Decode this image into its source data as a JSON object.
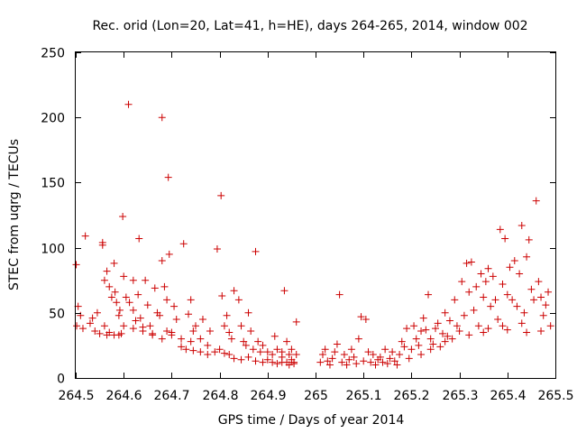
{
  "chart_data": {
    "type": "scatter",
    "title": "Rec. orid (Lon=20, Lat=41, h=HE), days 264-265, 2014, window 002",
    "xlabel": "GPS time / Days of year 2014",
    "ylabel": "STEC from uqrg / TECUs",
    "xlim": [
      264.5,
      265.5
    ],
    "ylim": [
      0,
      250
    ],
    "xticks": [
      264.5,
      264.6,
      264.7,
      264.8,
      264.9,
      265,
      265.1,
      265.2,
      265.3,
      265.4,
      265.5
    ],
    "xtick_labels": [
      "264.5",
      "264.6",
      "264.7",
      "264.8",
      "264.9",
      "265",
      "265.1",
      "265.2",
      "265.3",
      "265.4",
      "265.5"
    ],
    "yticks": [
      0,
      50,
      100,
      150,
      200,
      250
    ],
    "ytick_labels": [
      "0",
      "50",
      "100",
      "150",
      "200",
      "250"
    ],
    "grid": false,
    "legend": "none",
    "marker": "plus",
    "color": "#cc0000",
    "series": [
      {
        "points": [
          [
            264.501,
            87
          ],
          [
            264.52,
            109
          ],
          [
            264.505,
            55
          ],
          [
            264.51,
            48
          ],
          [
            264.502,
            40
          ],
          [
            264.515,
            38
          ],
          [
            264.53,
            42
          ],
          [
            264.535,
            46
          ],
          [
            264.54,
            36
          ],
          [
            264.55,
            34
          ],
          [
            264.545,
            50
          ],
          [
            264.556,
            104
          ],
          [
            264.556,
            102
          ],
          [
            264.56,
            75
          ],
          [
            264.565,
            82
          ],
          [
            264.57,
            70
          ],
          [
            264.575,
            62
          ],
          [
            264.58,
            88
          ],
          [
            264.582,
            66
          ],
          [
            264.585,
            58
          ],
          [
            264.59,
            48
          ],
          [
            264.592,
            52
          ],
          [
            264.56,
            40
          ],
          [
            264.565,
            33
          ],
          [
            264.57,
            35
          ],
          [
            264.58,
            33
          ],
          [
            264.59,
            33
          ],
          [
            264.595,
            34
          ],
          [
            264.598,
            124
          ],
          [
            264.6,
            78
          ],
          [
            264.605,
            62
          ],
          [
            264.61,
            210
          ],
          [
            264.612,
            58
          ],
          [
            264.62,
            75
          ],
          [
            264.62,
            52
          ],
          [
            264.625,
            44
          ],
          [
            264.63,
            64
          ],
          [
            264.632,
            107
          ],
          [
            264.635,
            46
          ],
          [
            264.64,
            36
          ],
          [
            264.645,
            75
          ],
          [
            264.65,
            56
          ],
          [
            264.655,
            40
          ],
          [
            264.66,
            33
          ],
          [
            264.665,
            69
          ],
          [
            264.67,
            50
          ],
          [
            264.675,
            48
          ],
          [
            264.68,
            200
          ],
          [
            264.68,
            90
          ],
          [
            264.685,
            70
          ],
          [
            264.69,
            60
          ],
          [
            264.693,
            154
          ],
          [
            264.695,
            95
          ],
          [
            264.7,
            35
          ],
          [
            264.705,
            55
          ],
          [
            264.71,
            45
          ],
          [
            264.6,
            40
          ],
          [
            264.62,
            38
          ],
          [
            264.64,
            39
          ],
          [
            264.66,
            34
          ],
          [
            264.68,
            30
          ],
          [
            264.7,
            33
          ],
          [
            264.72,
            30
          ],
          [
            264.74,
            28
          ],
          [
            264.69,
            36
          ],
          [
            264.725,
            103
          ],
          [
            264.735,
            49
          ],
          [
            264.74,
            60
          ],
          [
            264.745,
            36
          ],
          [
            264.75,
            40
          ],
          [
            264.76,
            30
          ],
          [
            264.765,
            45
          ],
          [
            264.775,
            25
          ],
          [
            264.78,
            36
          ],
          [
            264.72,
            24
          ],
          [
            264.73,
            22
          ],
          [
            264.745,
            21
          ],
          [
            264.76,
            20
          ],
          [
            264.775,
            18
          ],
          [
            264.79,
            20
          ],
          [
            264.8,
            22
          ],
          [
            264.81,
            19
          ],
          [
            264.82,
            18
          ],
          [
            264.795,
            99
          ],
          [
            264.803,
            140
          ],
          [
            264.805,
            63
          ],
          [
            264.81,
            40
          ],
          [
            264.815,
            48
          ],
          [
            264.82,
            35
          ],
          [
            264.825,
            30
          ],
          [
            264.83,
            67
          ],
          [
            264.84,
            60
          ],
          [
            264.845,
            40
          ],
          [
            264.85,
            28
          ],
          [
            264.855,
            25
          ],
          [
            264.86,
            50
          ],
          [
            264.865,
            36
          ],
          [
            264.87,
            22
          ],
          [
            264.875,
            97
          ],
          [
            264.88,
            28
          ],
          [
            264.885,
            20
          ],
          [
            264.83,
            15
          ],
          [
            264.845,
            14
          ],
          [
            264.86,
            16
          ],
          [
            264.875,
            13
          ],
          [
            264.89,
            12
          ],
          [
            264.9,
            14
          ],
          [
            264.91,
            12
          ],
          [
            264.92,
            11
          ],
          [
            264.93,
            12
          ],
          [
            264.89,
            25
          ],
          [
            264.9,
            20
          ],
          [
            264.91,
            18
          ],
          [
            264.915,
            32
          ],
          [
            264.92,
            22
          ],
          [
            264.93,
            20
          ],
          [
            264.935,
            67
          ],
          [
            264.94,
            28
          ],
          [
            264.945,
            18
          ],
          [
            264.95,
            14
          ],
          [
            264.955,
            12
          ],
          [
            264.96,
            43
          ],
          [
            264.96,
            18
          ],
          [
            264.945,
            10
          ],
          [
            264.955,
            11
          ],
          [
            264.95,
            22
          ],
          [
            264.94,
            12
          ],
          [
            264.93,
            16
          ],
          [
            265.01,
            12
          ],
          [
            265.015,
            18
          ],
          [
            265.02,
            22
          ],
          [
            265.025,
            13
          ],
          [
            265.03,
            10
          ],
          [
            265.035,
            15
          ],
          [
            265.04,
            20
          ],
          [
            265.045,
            26
          ],
          [
            265.05,
            64
          ],
          [
            265.055,
            12
          ],
          [
            265.06,
            18
          ],
          [
            265.065,
            10
          ],
          [
            265.07,
            14
          ],
          [
            265.075,
            22
          ],
          [
            265.08,
            16
          ],
          [
            265.085,
            11
          ],
          [
            265.09,
            30
          ],
          [
            265.095,
            47
          ],
          [
            265.1,
            13
          ],
          [
            265.105,
            45
          ],
          [
            265.11,
            20
          ],
          [
            265.115,
            12
          ],
          [
            265.12,
            18
          ],
          [
            265.125,
            10
          ],
          [
            265.13,
            14
          ],
          [
            265.135,
            16
          ],
          [
            265.14,
            12
          ],
          [
            265.145,
            22
          ],
          [
            265.15,
            11
          ],
          [
            265.155,
            15
          ],
          [
            265.16,
            20
          ],
          [
            265.165,
            13
          ],
          [
            265.17,
            10
          ],
          [
            265.175,
            18
          ],
          [
            265.18,
            28
          ],
          [
            265.185,
            24
          ],
          [
            265.19,
            38
          ],
          [
            265.195,
            15
          ],
          [
            265.2,
            22
          ],
          [
            265.205,
            40
          ],
          [
            265.21,
            30
          ],
          [
            265.215,
            25
          ],
          [
            265.22,
            36
          ],
          [
            265.225,
            46
          ],
          [
            265.23,
            37
          ],
          [
            265.235,
            64
          ],
          [
            265.24,
            30
          ],
          [
            265.245,
            26
          ],
          [
            265.25,
            38
          ],
          [
            265.255,
            42
          ],
          [
            265.26,
            24
          ],
          [
            265.265,
            34
          ],
          [
            265.27,
            50
          ],
          [
            265.275,
            32
          ],
          [
            265.28,
            44
          ],
          [
            265.285,
            30
          ],
          [
            265.29,
            60
          ],
          [
            265.295,
            40
          ],
          [
            265.3,
            36
          ],
          [
            265.305,
            74
          ],
          [
            265.31,
            48
          ],
          [
            265.315,
            88
          ],
          [
            265.32,
            66
          ],
          [
            265.325,
            89
          ],
          [
            265.33,
            52
          ],
          [
            265.335,
            70
          ],
          [
            265.34,
            40
          ],
          [
            265.345,
            80
          ],
          [
            265.35,
            62
          ],
          [
            265.355,
            74
          ],
          [
            265.36,
            84
          ],
          [
            265.365,
            55
          ],
          [
            265.37,
            78
          ],
          [
            265.375,
            60
          ],
          [
            265.38,
            45
          ],
          [
            265.385,
            114
          ],
          [
            265.39,
            72
          ],
          [
            265.395,
            107
          ],
          [
            265.4,
            64
          ],
          [
            265.405,
            85
          ],
          [
            265.41,
            60
          ],
          [
            265.415,
            90
          ],
          [
            265.42,
            55
          ],
          [
            265.425,
            80
          ],
          [
            265.43,
            117
          ],
          [
            265.435,
            50
          ],
          [
            265.44,
            93
          ],
          [
            265.445,
            106
          ],
          [
            265.45,
            68
          ],
          [
            265.455,
            60
          ],
          [
            265.46,
            136
          ],
          [
            265.465,
            74
          ],
          [
            265.47,
            62
          ],
          [
            265.475,
            48
          ],
          [
            265.48,
            56
          ],
          [
            265.485,
            66
          ],
          [
            265.49,
            40
          ],
          [
            265.36,
            38
          ],
          [
            265.4,
            37
          ],
          [
            265.44,
            35
          ],
          [
            265.47,
            36
          ],
          [
            265.43,
            42
          ],
          [
            265.39,
            40
          ],
          [
            265.35,
            35
          ],
          [
            265.32,
            33
          ],
          [
            265.27,
            28
          ],
          [
            265.24,
            22
          ],
          [
            265.22,
            18
          ]
        ]
      }
    ]
  }
}
